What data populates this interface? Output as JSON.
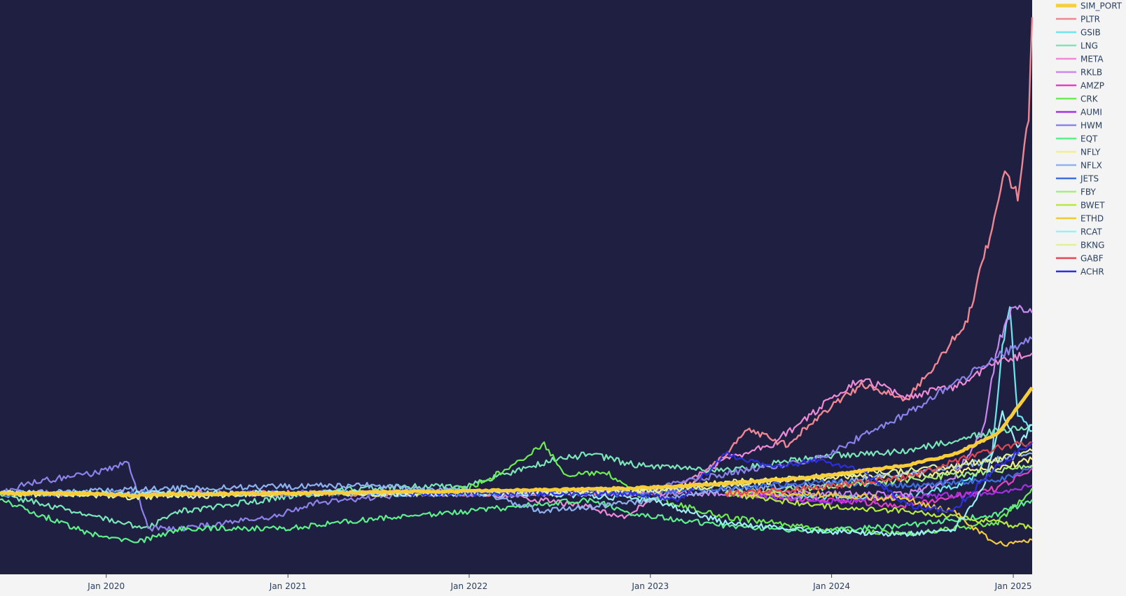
{
  "chart_data": {
    "type": "line",
    "title": "",
    "xlabel": "",
    "ylabel": "",
    "x_ticks": [
      "Jan 2020",
      "Jan 2021",
      "Jan 2022",
      "Jan 2023",
      "Jan 2024",
      "Jan 2025"
    ],
    "x_range": [
      "2019-06-01",
      "2025-02-08"
    ],
    "y_range": [
      0,
      1
    ],
    "y_axis": "relative performance (no tick labels shown)",
    "grid": false,
    "legend_position": "right",
    "plot_background": "#1f2041",
    "paper_background": "#f4f4f4",
    "series": [
      {
        "name": "SIM_PORT",
        "color": "#f7cd3b",
        "width": 5,
        "start": "2019-06-01",
        "points": [
          [
            "2019-06-01",
            0.141
          ],
          [
            "2019-12-01",
            0.141
          ],
          [
            "2020-03-01",
            0.137
          ],
          [
            "2020-06-01",
            0.14
          ],
          [
            "2021-01-01",
            0.141
          ],
          [
            "2021-06-01",
            0.143
          ],
          [
            "2022-01-01",
            0.145
          ],
          [
            "2022-06-01",
            0.147
          ],
          [
            "2022-12-01",
            0.15
          ],
          [
            "2023-06-01",
            0.158
          ],
          [
            "2023-12-01",
            0.17
          ],
          [
            "2024-03-01",
            0.18
          ],
          [
            "2024-06-01",
            0.19
          ],
          [
            "2024-09-01",
            0.208
          ],
          [
            "2024-12-01",
            0.245
          ],
          [
            "2025-02-08",
            0.325
          ]
        ]
      },
      {
        "name": "PLTR",
        "color": "#ef8693",
        "width": 2.4,
        "start": "2020-09-30",
        "points": [
          [
            "2020-09-30",
            0.141
          ],
          [
            "2022-12-01",
            0.141
          ],
          [
            "2023-03-01",
            0.145
          ],
          [
            "2023-06-01",
            0.205
          ],
          [
            "2023-07-15",
            0.255
          ],
          [
            "2023-10-01",
            0.225
          ],
          [
            "2023-12-15",
            0.282
          ],
          [
            "2024-03-01",
            0.33
          ],
          [
            "2024-06-01",
            0.305
          ],
          [
            "2024-08-01",
            0.37
          ],
          [
            "2024-10-01",
            0.445
          ],
          [
            "2024-11-15",
            0.59
          ],
          [
            "2024-12-15",
            0.7
          ],
          [
            "2025-01-10",
            0.66
          ],
          [
            "2025-02-01",
            0.8
          ],
          [
            "2025-02-08",
            0.97
          ]
        ]
      },
      {
        "name": "GSIB",
        "color": "#6ee6ef",
        "width": 2.2,
        "start": "2023-06-01",
        "points": [
          [
            "2023-06-01",
            0.141
          ],
          [
            "2023-12-01",
            0.135
          ],
          [
            "2024-06-01",
            0.135
          ],
          [
            "2024-10-01",
            0.16
          ],
          [
            "2024-11-20",
            0.21
          ],
          [
            "2024-12-10",
            0.4
          ],
          [
            "2024-12-25",
            0.46
          ],
          [
            "2025-01-10",
            0.28
          ],
          [
            "2025-02-08",
            0.25
          ]
        ]
      },
      {
        "name": "LNG",
        "color": "#7be6b8",
        "width": 2.2,
        "start": "2019-06-01",
        "points": [
          [
            "2019-06-01",
            0.14
          ],
          [
            "2020-03-20",
            0.08
          ],
          [
            "2020-06-01",
            0.11
          ],
          [
            "2021-01-01",
            0.135
          ],
          [
            "2021-06-01",
            0.15
          ],
          [
            "2022-01-01",
            0.155
          ],
          [
            "2022-06-01",
            0.195
          ],
          [
            "2022-09-01",
            0.21
          ],
          [
            "2022-12-01",
            0.19
          ],
          [
            "2023-06-01",
            0.18
          ],
          [
            "2023-12-01",
            0.205
          ],
          [
            "2024-06-01",
            0.215
          ],
          [
            "2024-12-01",
            0.25
          ],
          [
            "2025-02-08",
            0.26
          ]
        ]
      },
      {
        "name": "META",
        "color": "#ef8bd6",
        "width": 2.2,
        "start": "2019-06-01",
        "points": [
          [
            "2019-06-01",
            0.141
          ],
          [
            "2020-06-01",
            0.141
          ],
          [
            "2021-06-01",
            0.141
          ],
          [
            "2022-01-01",
            0.145
          ],
          [
            "2022-09-01",
            0.118
          ],
          [
            "2022-11-01",
            0.098
          ],
          [
            "2023-02-01",
            0.14
          ],
          [
            "2023-06-01",
            0.2
          ],
          [
            "2023-09-01",
            0.225
          ],
          [
            "2024-01-15",
            0.315
          ],
          [
            "2024-03-01",
            0.34
          ],
          [
            "2024-06-01",
            0.31
          ],
          [
            "2024-09-01",
            0.325
          ],
          [
            "2024-12-01",
            0.37
          ],
          [
            "2025-02-08",
            0.385
          ]
        ]
      },
      {
        "name": "RKLB",
        "color": "#c987ef",
        "width": 2.2,
        "start": "2021-08-25",
        "points": [
          [
            "2021-08-25",
            0.141
          ],
          [
            "2022-06-01",
            0.141
          ],
          [
            "2023-06-01",
            0.141
          ],
          [
            "2024-06-01",
            0.14
          ],
          [
            "2024-09-01",
            0.165
          ],
          [
            "2024-11-01",
            0.25
          ],
          [
            "2024-12-01",
            0.4
          ],
          [
            "2025-01-01",
            0.47
          ],
          [
            "2025-02-08",
            0.455
          ]
        ]
      },
      {
        "name": "AMZP",
        "color": "#e43fc5",
        "width": 2.2,
        "start": "2023-06-01",
        "points": [
          [
            "2023-06-01",
            0.141
          ],
          [
            "2023-12-01",
            0.13
          ],
          [
            "2024-06-01",
            0.12
          ],
          [
            "2024-12-01",
            0.15
          ],
          [
            "2025-02-08",
            0.185
          ]
        ]
      },
      {
        "name": "CRK",
        "color": "#6cec52",
        "width": 2.2,
        "start": "2021-09-01",
        "points": [
          [
            "2021-09-01",
            0.141
          ],
          [
            "2022-01-01",
            0.15
          ],
          [
            "2022-03-01",
            0.175
          ],
          [
            "2022-06-01",
            0.225
          ],
          [
            "2022-07-15",
            0.17
          ],
          [
            "2022-10-01",
            0.18
          ],
          [
            "2022-12-01",
            0.14
          ],
          [
            "2023-06-01",
            0.1
          ],
          [
            "2023-12-01",
            0.08
          ],
          [
            "2024-06-01",
            0.07
          ],
          [
            "2024-12-01",
            0.09
          ],
          [
            "2025-02-08",
            0.15
          ]
        ]
      },
      {
        "name": "AUMI",
        "color": "#a52fe3",
        "width": 2.2,
        "start": "2023-06-01",
        "points": [
          [
            "2023-06-01",
            0.141
          ],
          [
            "2023-12-01",
            0.125
          ],
          [
            "2024-06-01",
            0.135
          ],
          [
            "2024-12-01",
            0.14
          ],
          [
            "2025-02-08",
            0.155
          ]
        ]
      },
      {
        "name": "HWM",
        "color": "#8b83ea",
        "width": 2.2,
        "start": "2019-06-01",
        "points": [
          [
            "2019-06-01",
            0.141
          ],
          [
            "2019-08-01",
            0.16
          ],
          [
            "2019-12-01",
            0.175
          ],
          [
            "2020-02-15",
            0.195
          ],
          [
            "2020-03-25",
            0.08
          ],
          [
            "2020-06-01",
            0.08
          ],
          [
            "2020-12-01",
            0.1
          ],
          [
            "2021-03-01",
            0.125
          ],
          [
            "2021-09-01",
            0.14
          ],
          [
            "2022-01-01",
            0.14
          ],
          [
            "2022-06-01",
            0.14
          ],
          [
            "2023-01-01",
            0.15
          ],
          [
            "2023-06-01",
            0.175
          ],
          [
            "2023-12-01",
            0.2
          ],
          [
            "2024-06-01",
            0.28
          ],
          [
            "2024-12-01",
            0.38
          ],
          [
            "2025-02-08",
            0.41
          ]
        ]
      },
      {
        "name": "EQT",
        "color": "#5cf08a",
        "width": 2.2,
        "start": "2019-06-01",
        "points": [
          [
            "2019-06-01",
            0.13
          ],
          [
            "2019-12-01",
            0.07
          ],
          [
            "2020-03-01",
            0.055
          ],
          [
            "2020-06-01",
            0.08
          ],
          [
            "2021-01-01",
            0.08
          ],
          [
            "2021-06-01",
            0.095
          ],
          [
            "2022-01-01",
            0.11
          ],
          [
            "2022-09-01",
            0.13
          ],
          [
            "2022-12-01",
            0.105
          ],
          [
            "2023-06-01",
            0.085
          ],
          [
            "2023-12-01",
            0.075
          ],
          [
            "2024-06-01",
            0.085
          ],
          [
            "2024-12-01",
            0.105
          ],
          [
            "2025-02-08",
            0.13
          ]
        ]
      },
      {
        "name": "NFLY",
        "color": "#f3f08a",
        "width": 2.2,
        "start": "2022-06-01",
        "points": [
          [
            "2022-06-01",
            0.141
          ],
          [
            "2022-12-01",
            0.145
          ],
          [
            "2023-06-01",
            0.16
          ],
          [
            "2023-12-01",
            0.168
          ],
          [
            "2024-06-01",
            0.172
          ],
          [
            "2024-12-01",
            0.185
          ],
          [
            "2025-02-08",
            0.2
          ]
        ]
      },
      {
        "name": "NFLX",
        "color": "#8fb2ee",
        "width": 2.2,
        "start": "2019-06-01",
        "points": [
          [
            "2019-06-01",
            0.141
          ],
          [
            "2020-06-01",
            0.15
          ],
          [
            "2021-06-01",
            0.155
          ],
          [
            "2022-01-01",
            0.145
          ],
          [
            "2022-06-01",
            0.11
          ],
          [
            "2022-12-01",
            0.125
          ],
          [
            "2023-06-01",
            0.15
          ],
          [
            "2023-12-01",
            0.155
          ],
          [
            "2024-06-01",
            0.175
          ],
          [
            "2024-12-01",
            0.2
          ],
          [
            "2025-02-08",
            0.21
          ]
        ]
      },
      {
        "name": "JETS",
        "color": "#3f6ede",
        "width": 2.2,
        "start": "2019-06-01",
        "points": [
          [
            "2019-06-01",
            0.141
          ],
          [
            "2020-03-01",
            0.141
          ],
          [
            "2021-01-01",
            0.141
          ],
          [
            "2022-01-01",
            0.141
          ],
          [
            "2022-12-01",
            0.141
          ],
          [
            "2023-06-01",
            0.15
          ],
          [
            "2023-12-01",
            0.16
          ],
          [
            "2024-06-01",
            0.155
          ],
          [
            "2024-12-01",
            0.165
          ],
          [
            "2025-02-08",
            0.185
          ]
        ]
      },
      {
        "name": "FBY",
        "color": "#a5ef7a",
        "width": 2.2,
        "start": "2023-06-01",
        "points": [
          [
            "2023-06-01",
            0.141
          ],
          [
            "2023-12-01",
            0.15
          ],
          [
            "2024-06-01",
            0.165
          ],
          [
            "2024-12-01",
            0.18
          ],
          [
            "2025-02-08",
            0.19
          ]
        ]
      },
      {
        "name": "BWET",
        "color": "#b6ea3d",
        "width": 2.2,
        "start": "2023-06-01",
        "points": [
          [
            "2023-06-01",
            0.141
          ],
          [
            "2023-12-01",
            0.12
          ],
          [
            "2024-06-01",
            0.11
          ],
          [
            "2024-09-01",
            0.1
          ],
          [
            "2024-12-01",
            0.09
          ],
          [
            "2025-02-08",
            0.08
          ]
        ]
      },
      {
        "name": "ETHD",
        "color": "#f1c93a",
        "width": 2.2,
        "start": "2023-06-01",
        "points": [
          [
            "2023-06-01",
            0.141
          ],
          [
            "2023-12-01",
            0.14
          ],
          [
            "2024-06-01",
            0.13
          ],
          [
            "2024-09-01",
            0.11
          ],
          [
            "2024-11-15",
            0.06
          ],
          [
            "2024-12-15",
            0.052
          ],
          [
            "2025-02-08",
            0.06
          ]
        ]
      },
      {
        "name": "RCAT",
        "color": "#9af0f2",
        "width": 2.2,
        "start": "2019-06-01",
        "points": [
          [
            "2019-06-01",
            0.141
          ],
          [
            "2021-06-01",
            0.141
          ],
          [
            "2022-06-01",
            0.141
          ],
          [
            "2023-01-01",
            0.13
          ],
          [
            "2023-06-01",
            0.09
          ],
          [
            "2023-12-01",
            0.075
          ],
          [
            "2024-06-01",
            0.07
          ],
          [
            "2024-09-01",
            0.075
          ],
          [
            "2024-11-01",
            0.15
          ],
          [
            "2024-12-10",
            0.28
          ],
          [
            "2025-01-10",
            0.22
          ],
          [
            "2025-02-08",
            0.26
          ]
        ]
      },
      {
        "name": "BKNG",
        "color": "#e2f197",
        "width": 2.2,
        "start": "2019-06-01",
        "points": [
          [
            "2019-06-01",
            0.141
          ],
          [
            "2020-03-01",
            0.135
          ],
          [
            "2021-01-01",
            0.14
          ],
          [
            "2022-01-01",
            0.142
          ],
          [
            "2023-01-01",
            0.145
          ],
          [
            "2023-06-01",
            0.155
          ],
          [
            "2023-12-01",
            0.17
          ],
          [
            "2024-06-01",
            0.18
          ],
          [
            "2024-12-01",
            0.2
          ],
          [
            "2025-02-08",
            0.215
          ]
        ]
      },
      {
        "name": "GABF",
        "color": "#e2474f",
        "width": 2.2,
        "start": "2023-06-01",
        "points": [
          [
            "2023-06-01",
            0.141
          ],
          [
            "2023-12-01",
            0.15
          ],
          [
            "2024-06-01",
            0.17
          ],
          [
            "2024-12-01",
            0.22
          ],
          [
            "2025-02-08",
            0.23
          ]
        ]
      },
      {
        "name": "ACHR",
        "color": "#2d2fdc",
        "width": 2.2,
        "start": "2021-09-01",
        "points": [
          [
            "2021-09-01",
            0.141
          ],
          [
            "2022-06-01",
            0.141
          ],
          [
            "2022-12-01",
            0.141
          ],
          [
            "2023-03-01",
            0.13
          ],
          [
            "2023-06-01",
            0.21
          ],
          [
            "2023-09-01",
            0.185
          ],
          [
            "2023-12-01",
            0.2
          ],
          [
            "2024-03-01",
            0.18
          ],
          [
            "2024-06-01",
            0.12
          ],
          [
            "2024-09-01",
            0.11
          ],
          [
            "2024-12-01",
            0.19
          ],
          [
            "2025-02-08",
            0.23
          ]
        ]
      }
    ]
  }
}
